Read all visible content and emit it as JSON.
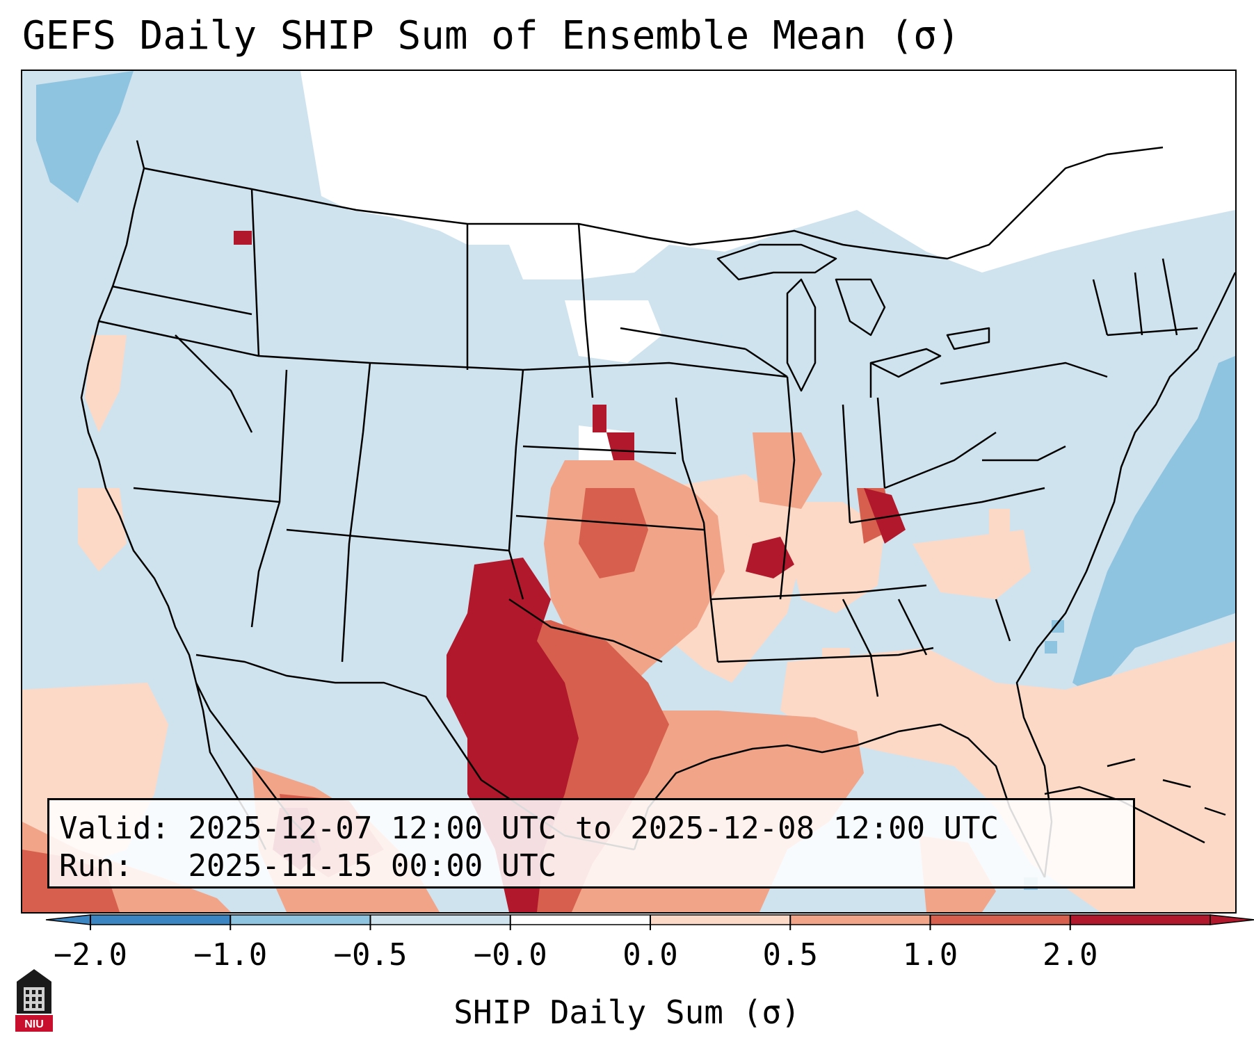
{
  "title": "GEFS Daily SHIP Sum of Ensemble Mean (σ)",
  "info": {
    "valid_label": "Valid:",
    "valid_value": "2025-12-07 12:00 UTC to 2025-12-08 12:00 UTC",
    "run_label": "Run:",
    "run_value": "2025-11-15 00:00 UTC"
  },
  "colorbar": {
    "label": "SHIP Daily Sum (σ)",
    "ticks": [
      "−2.0",
      "−1.0",
      "−0.5",
      "−0.0",
      "0.0",
      "0.5",
      "1.0",
      "2.0"
    ],
    "colors": [
      "#3b86c2",
      "#8fc4e0",
      "#cfe3ef",
      "#ffffff",
      "#fbd9c6",
      "#f1a488",
      "#d6604d",
      "#b2182b"
    ],
    "extend": "both"
  },
  "map": {
    "projection": "Lambert Conformal (CONUS)",
    "background_class_color": "#cfe3ef",
    "ocean_color": "#ffffff",
    "feature_colors": {
      "near_zero": "#ffffff",
      "weak_negative": "#cfe3ef",
      "moderate_negative": "#8fc4e0",
      "weak_positive": "#fbd9c6",
      "moderate_positive": "#f1a488",
      "strong_positive": "#d6604d",
      "very_strong_positive": "#b2182b"
    }
  },
  "logo": {
    "text": "NIU",
    "color": "#c8102e"
  }
}
